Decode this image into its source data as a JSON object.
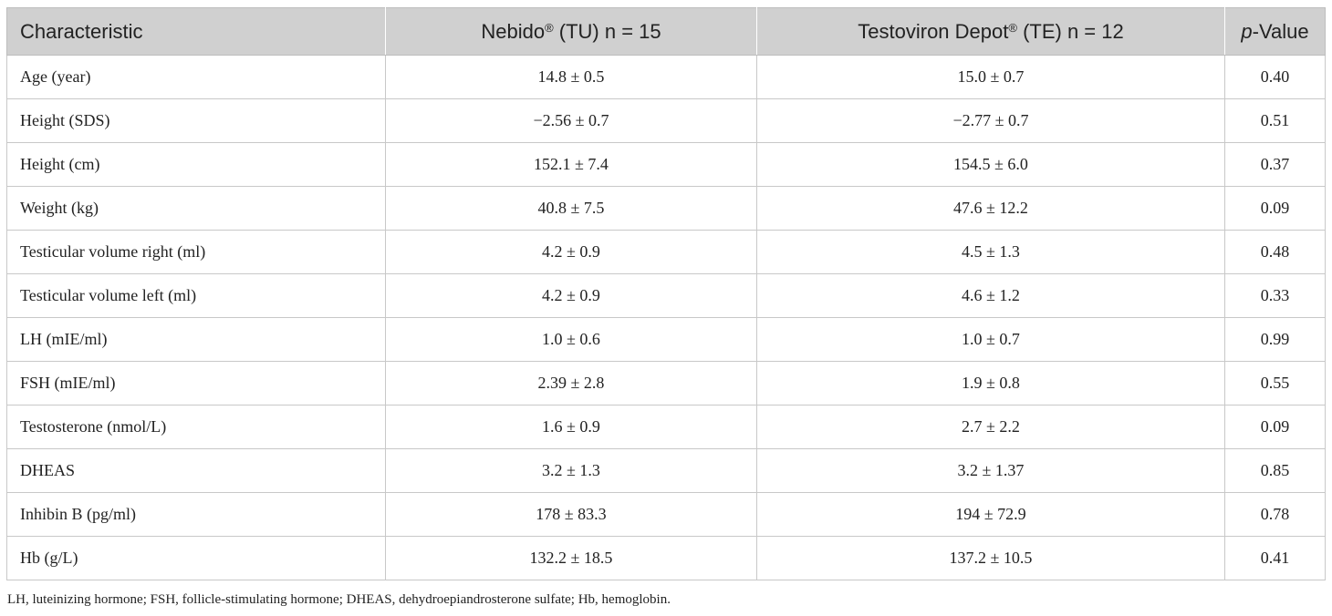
{
  "table": {
    "headers": {
      "characteristic": "Characteristic",
      "tu_name": "Nebido",
      "tu_reg": "®",
      "tu_rest": " (TU) n = 15",
      "te_name": "Testoviron Depot",
      "te_reg": "®",
      "te_rest": " (TE) n = 12",
      "p_italic": "p",
      "p_rest": "-Value"
    },
    "rows": [
      {
        "characteristic": "Age (year)",
        "tu": "14.8 ± 0.5",
        "te": "15.0 ± 0.7",
        "p": "0.40"
      },
      {
        "characteristic": "Height (SDS)",
        "tu": "−2.56 ± 0.7",
        "te": "−2.77 ± 0.7",
        "p": "0.51"
      },
      {
        "characteristic": "Height (cm)",
        "tu": "152.1 ± 7.4",
        "te": "154.5 ± 6.0",
        "p": "0.37"
      },
      {
        "characteristic": "Weight (kg)",
        "tu": "40.8 ± 7.5",
        "te": "47.6 ± 12.2",
        "p": "0.09"
      },
      {
        "characteristic": "Testicular volume right (ml)",
        "tu": "4.2 ± 0.9",
        "te": "4.5 ± 1.3",
        "p": "0.48"
      },
      {
        "characteristic": "Testicular volume left (ml)",
        "tu": "4.2 ± 0.9",
        "te": "4.6 ± 1.2",
        "p": "0.33"
      },
      {
        "characteristic": "LH (mIE/ml)",
        "tu": "1.0 ± 0.6",
        "te": "1.0 ± 0.7",
        "p": "0.99"
      },
      {
        "characteristic": "FSH (mIE/ml)",
        "tu": "2.39 ± 2.8",
        "te": "1.9 ± 0.8",
        "p": "0.55"
      },
      {
        "characteristic": "Testosterone (nmol/L)",
        "tu": "1.6 ± 0.9",
        "te": "2.7 ± 2.2",
        "p": "0.09"
      },
      {
        "characteristic": "DHEAS",
        "tu": "3.2 ± 1.3",
        "te": "3.2 ± 1.37",
        "p": "0.85"
      },
      {
        "characteristic": "Inhibin B (pg/ml)",
        "tu": "178 ± 83.3",
        "te": "194 ± 72.9",
        "p": "0.78"
      },
      {
        "characteristic": "Hb (g/L)",
        "tu": "132.2 ± 18.5",
        "te": "137.2 ± 10.5",
        "p": "0.41"
      }
    ]
  },
  "footnote": "LH, luteinizing hormone; FSH, follicle-stimulating hormone; DHEAS, dehydroepiandrosterone sulfate; Hb, hemoglobin."
}
